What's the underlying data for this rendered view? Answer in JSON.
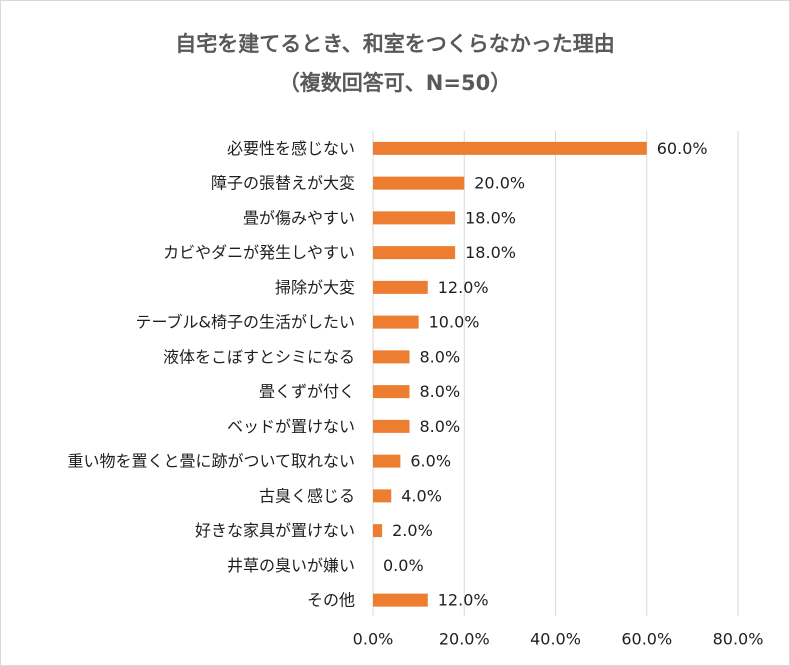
{
  "chart_data": {
    "type": "bar",
    "orientation": "horizontal",
    "title": "自宅を建てるとき、和室をつくらなかった理由",
    "subtitle": "（複数回答可、N=50）",
    "categories": [
      "必要性を感じない",
      "障子の張替えが大変",
      "畳が傷みやすい",
      "カビやダニが発生しやすい",
      "掃除が大変",
      "テーブル&椅子の生活がしたい",
      "液体をこぼすとシミになる",
      "畳くずが付く",
      "ベッドが置けない",
      "重い物を置くと畳に跡がついて取れない",
      "古臭く感じる",
      "好きな家具が置けない",
      "井草の臭いが嫌い",
      "その他"
    ],
    "values": [
      60.0,
      20.0,
      18.0,
      18.0,
      12.0,
      10.0,
      8.0,
      8.0,
      8.0,
      6.0,
      4.0,
      2.0,
      0.0,
      12.0
    ],
    "value_labels": [
      "60.0%",
      "20.0%",
      "18.0%",
      "18.0%",
      "12.0%",
      "10.0%",
      "8.0%",
      "8.0%",
      "8.0%",
      "6.0%",
      "4.0%",
      "2.0%",
      "0.0%",
      "12.0%"
    ],
    "xlim": [
      0,
      80
    ],
    "x_ticks": [
      0,
      20,
      40,
      60,
      80
    ],
    "x_tick_labels": [
      "0.0%",
      "20.0%",
      "40.0%",
      "60.0%",
      "80.0%"
    ],
    "grid": true,
    "bar_color": "#ed7d31",
    "grid_color": "#d9d9d9"
  }
}
